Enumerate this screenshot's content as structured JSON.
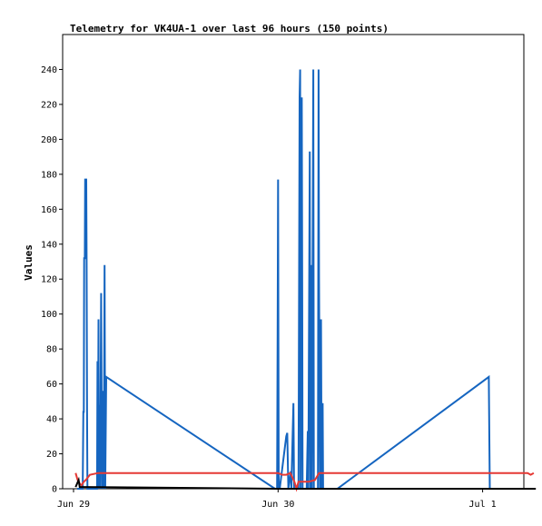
{
  "chart_data": {
    "type": "line",
    "title": "Telemetry for VK4UA-1 over last 96 hours (150 points)",
    "xlabel": "",
    "ylabel": "Values",
    "x_unit": "days from Jun 29 00:00",
    "xlim": [
      0,
      2.26
    ],
    "ylim": [
      0,
      260
    ],
    "x_tick_labels": [
      {
        "x": 0,
        "label": "Jun 29"
      },
      {
        "x": 1,
        "label": "Jun 30"
      },
      {
        "x": 2,
        "label": "Jul 1"
      }
    ],
    "y_ticks": [
      0,
      20,
      40,
      60,
      80,
      100,
      120,
      140,
      160,
      180,
      200,
      220,
      240
    ],
    "grid": false,
    "legend": "none",
    "series": [
      {
        "color": "#1565c0",
        "points": [
          [
            0.018,
            0
          ],
          [
            0.045,
            0
          ],
          [
            0.048,
            44
          ],
          [
            0.05,
            44
          ],
          [
            0.052,
            132
          ],
          [
            0.055,
            132
          ],
          [
            0.057,
            177
          ],
          [
            0.062,
            177
          ],
          [
            0.064,
            132
          ],
          [
            0.066,
            44
          ],
          [
            0.068,
            0
          ],
          [
            0.115,
            0
          ],
          [
            0.117,
            73
          ],
          [
            0.119,
            0
          ],
          [
            0.122,
            97
          ],
          [
            0.124,
            0
          ],
          [
            0.127,
            48
          ],
          [
            0.13,
            0
          ],
          [
            0.135,
            112
          ],
          [
            0.137,
            57
          ],
          [
            0.14,
            0
          ],
          [
            0.145,
            56
          ],
          [
            0.148,
            0
          ],
          [
            0.152,
            128
          ],
          [
            0.155,
            0
          ],
          [
            0.16,
            64
          ],
          [
            0.985,
            0
          ],
          [
            0.995,
            0
          ],
          [
            0.998,
            89
          ],
          [
            1.0,
            177
          ],
          [
            1.003,
            0
          ],
          [
            1.008,
            0
          ],
          [
            1.04,
            30
          ],
          [
            1.045,
            32
          ],
          [
            1.05,
            0
          ],
          [
            1.062,
            10
          ],
          [
            1.065,
            0
          ],
          [
            1.075,
            49
          ],
          [
            1.078,
            0
          ],
          [
            1.085,
            0
          ],
          [
            1.1,
            0
          ],
          [
            1.105,
            224
          ],
          [
            1.108,
            240
          ],
          [
            1.11,
            0
          ],
          [
            1.113,
            96
          ],
          [
            1.116,
            224
          ],
          [
            1.118,
            112
          ],
          [
            1.12,
            0
          ],
          [
            1.125,
            0
          ],
          [
            1.14,
            0
          ],
          [
            1.145,
            33
          ],
          [
            1.148,
            0
          ],
          [
            1.155,
            193
          ],
          [
            1.158,
            0
          ],
          [
            1.162,
            128
          ],
          [
            1.165,
            0
          ],
          [
            1.172,
            240
          ],
          [
            1.175,
            0
          ],
          [
            1.18,
            0
          ],
          [
            1.195,
            0
          ],
          [
            1.198,
            240
          ],
          [
            1.2,
            121
          ],
          [
            1.205,
            0
          ],
          [
            1.21,
            97
          ],
          [
            1.213,
            0
          ],
          [
            1.218,
            49
          ],
          [
            1.22,
            0
          ],
          [
            1.29,
            0
          ],
          [
            2.03,
            64
          ],
          [
            2.035,
            0
          ]
        ]
      },
      {
        "color": "#e53935",
        "points": [
          [
            0.01,
            9
          ],
          [
            0.02,
            5
          ],
          [
            0.03,
            3
          ],
          [
            0.04,
            2
          ],
          [
            0.05,
            4
          ],
          [
            0.06,
            5
          ],
          [
            0.08,
            8
          ],
          [
            0.12,
            9
          ],
          [
            0.16,
            9
          ],
          [
            0.99,
            9
          ],
          [
            1.0,
            9
          ],
          [
            1.02,
            8
          ],
          [
            1.04,
            8
          ],
          [
            1.06,
            9
          ],
          [
            1.08,
            4
          ],
          [
            1.09,
            0
          ],
          [
            1.1,
            4
          ],
          [
            1.15,
            4
          ],
          [
            1.18,
            5
          ],
          [
            1.2,
            9
          ],
          [
            1.3,
            9
          ],
          [
            2.0,
            9
          ],
          [
            2.22,
            9
          ],
          [
            2.235,
            8
          ],
          [
            2.25,
            9
          ]
        ]
      },
      {
        "color": "#000000",
        "points": [
          [
            0.01,
            1
          ],
          [
            0.025,
            5
          ],
          [
            0.03,
            1
          ],
          [
            0.05,
            1
          ],
          [
            1.0,
            0
          ],
          [
            2.26,
            0
          ]
        ]
      }
    ]
  }
}
